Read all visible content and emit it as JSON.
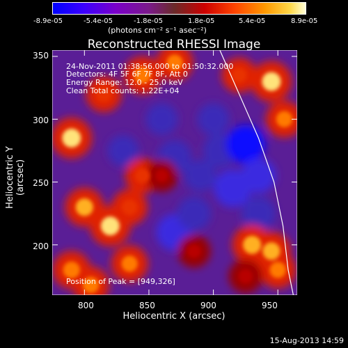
{
  "colorbar": {
    "ticks": [
      "-8.9e-05",
      "-5.4e-05",
      "-1.8e-05",
      "1.8e-05",
      "5.4e-05",
      "8.9e-05"
    ],
    "unit": "(photons cm⁻² s⁻¹ asec⁻²)"
  },
  "chart_data": {
    "type": "heatmap",
    "title": "Reconstructed RHESSI Image",
    "xlabel": "Heliocentric X (arcsec)",
    "ylabel": "Heliocentric Y (arcsec)",
    "xlim": [
      775,
      965
    ],
    "ylim": [
      160,
      355
    ],
    "x_ticks": [
      "800",
      "850",
      "900",
      "950"
    ],
    "y_ticks": [
      "350",
      "300",
      "250",
      "200"
    ],
    "colorbar_range": [
      -8.9e-05,
      8.9e-05
    ],
    "annotations": [
      "24-Nov-2011 01:38:56.000 to 01:50:32.000",
      "Detectors: 4F 5F 6F 7F 8F, Att 0",
      "Energy Range: 12.0 - 25.0 keV",
      "Clean    Total counts: 1.22E+04"
    ],
    "peak_label": "Position of Peak = [949,326]",
    "peak": [
      949,
      326
    ],
    "hot_regions": [
      {
        "x": 790,
        "y": 285,
        "level": 0.95
      },
      {
        "x": 815,
        "y": 320,
        "level": 0.7
      },
      {
        "x": 845,
        "y": 335,
        "level": 0.8
      },
      {
        "x": 870,
        "y": 345,
        "level": 0.75
      },
      {
        "x": 920,
        "y": 335,
        "level": 0.65
      },
      {
        "x": 945,
        "y": 330,
        "level": 0.95
      },
      {
        "x": 955,
        "y": 300,
        "level": 0.75
      },
      {
        "x": 800,
        "y": 230,
        "level": 0.85
      },
      {
        "x": 820,
        "y": 215,
        "level": 0.95
      },
      {
        "x": 835,
        "y": 230,
        "level": 0.7
      },
      {
        "x": 790,
        "y": 180,
        "level": 0.8
      },
      {
        "x": 835,
        "y": 185,
        "level": 0.75
      },
      {
        "x": 845,
        "y": 255,
        "level": 0.65
      },
      {
        "x": 860,
        "y": 255,
        "level": 0.5
      },
      {
        "x": 930,
        "y": 200,
        "level": 0.9
      },
      {
        "x": 945,
        "y": 195,
        "level": 0.85
      },
      {
        "x": 950,
        "y": 180,
        "level": 0.75
      },
      {
        "x": 925,
        "y": 175,
        "level": 0.6
      },
      {
        "x": 885,
        "y": 195,
        "level": 0.55
      },
      {
        "x": 805,
        "y": 168,
        "level": 0.75
      }
    ],
    "cold_regions": [
      {
        "x": 870,
        "y": 270,
        "level": -0.6
      },
      {
        "x": 905,
        "y": 275,
        "level": -0.6
      },
      {
        "x": 925,
        "y": 280,
        "level": -0.85
      },
      {
        "x": 915,
        "y": 245,
        "level": -0.8
      },
      {
        "x": 935,
        "y": 255,
        "level": -0.65
      },
      {
        "x": 870,
        "y": 210,
        "level": -0.75
      },
      {
        "x": 885,
        "y": 225,
        "level": -0.6
      },
      {
        "x": 935,
        "y": 225,
        "level": -0.6
      },
      {
        "x": 900,
        "y": 300,
        "level": -0.5
      },
      {
        "x": 860,
        "y": 300,
        "level": -0.5
      },
      {
        "x": 890,
        "y": 255,
        "level": -0.5
      },
      {
        "x": 830,
        "y": 275,
        "level": -0.45
      }
    ],
    "limb_curve": [
      [
        905,
        355
      ],
      [
        920,
        320
      ],
      [
        935,
        285
      ],
      [
        947,
        250
      ],
      [
        954,
        215
      ],
      [
        958,
        180
      ],
      [
        962,
        160
      ]
    ]
  },
  "footer": {
    "date": "15-Aug-2013 14:59"
  }
}
